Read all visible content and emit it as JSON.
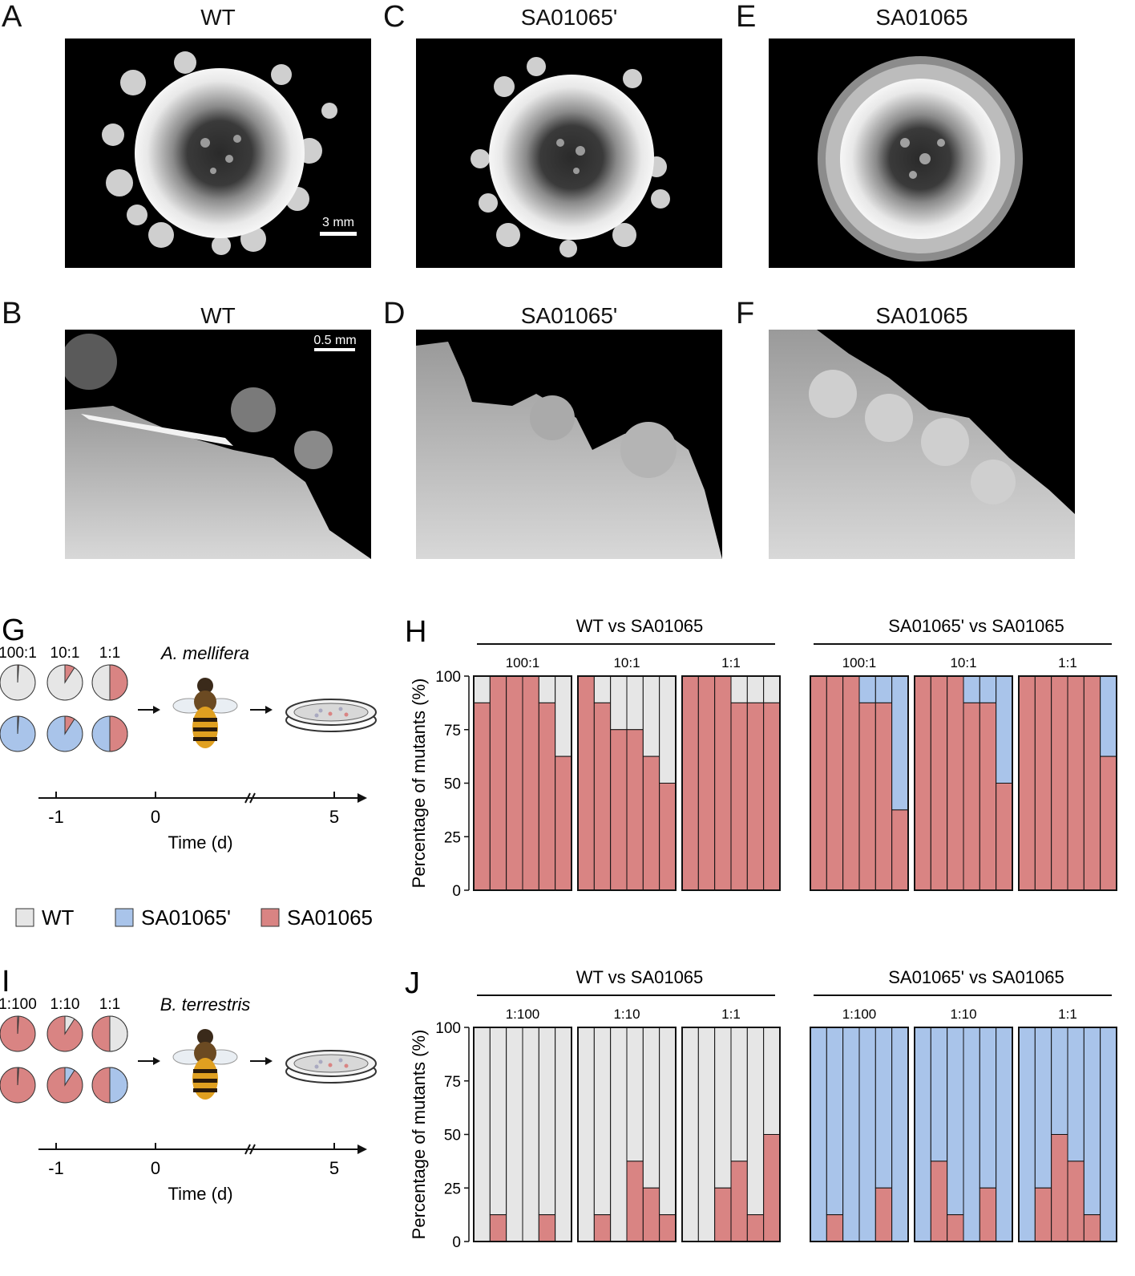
{
  "panels": {
    "A": {
      "letter": "A",
      "title": "WT",
      "scale_bar": "3 mm"
    },
    "B": {
      "letter": "B",
      "title": "WT",
      "scale_bar": "0.5 mm"
    },
    "C": {
      "letter": "C",
      "title": "SA01065'"
    },
    "D": {
      "letter": "D",
      "title": "SA01065'"
    },
    "E": {
      "letter": "E",
      "title": "SA01065"
    },
    "F": {
      "letter": "F",
      "title": "SA01065"
    }
  },
  "schematics": {
    "G": {
      "letter": "G",
      "ratios": [
        "100:1",
        "10:1",
        "1:1"
      ],
      "species": "A. mellifera",
      "ticks": [
        "-1",
        "0",
        "5"
      ],
      "time_label": "Time (d)",
      "pies_top": [
        0.01,
        0.0909,
        0.5
      ],
      "pies_bottom": [
        0.01,
        0.0909,
        0.5
      ]
    },
    "I": {
      "letter": "I",
      "ratios": [
        "1:100",
        "1:10",
        "1:1"
      ],
      "species": "B. terrestris",
      "ticks": [
        "-1",
        "0",
        "5"
      ],
      "time_label": "Time (d)",
      "pies_top": [
        0.01,
        0.0909,
        0.5
      ],
      "pies_bottom": [
        0.01,
        0.0909,
        0.5
      ]
    }
  },
  "legend": [
    {
      "label": "WT",
      "color": "#e6e6e6"
    },
    {
      "label": "SA01065'",
      "color": "#a9c4ea"
    },
    {
      "label": "SA01065",
      "color": "#d98483"
    }
  ],
  "colors": {
    "WT": "#e6e6e6",
    "SA01065p": "#a9c4ea",
    "SA01065": "#d98483"
  },
  "chart_data": [
    {
      "type": "bar",
      "panel": "H",
      "ylabel": "Percentage of mutants (%)",
      "ylim": [
        0,
        100
      ],
      "yticks": [
        0,
        25,
        50,
        75,
        100
      ],
      "groups": [
        {
          "title": "WT vs SA01065",
          "other": "WT",
          "subgroups": [
            {
              "label": "100:1",
              "values": [
                87.5,
                100,
                100,
                100,
                87.5,
                62.5
              ]
            },
            {
              "label": "10:1",
              "values": [
                100,
                87.5,
                75,
                75,
                62.5,
                50
              ]
            },
            {
              "label": "1:1",
              "values": [
                100,
                100,
                100,
                87.5,
                87.5,
                87.5
              ]
            }
          ]
        },
        {
          "title": "SA01065' vs SA01065",
          "other": "SA01065'",
          "subgroups": [
            {
              "label": "100:1",
              "values": [
                100,
                100,
                100,
                87.5,
                87.5,
                37.5
              ]
            },
            {
              "label": "10:1",
              "values": [
                100,
                100,
                100,
                87.5,
                87.5,
                50
              ]
            },
            {
              "label": "1:1",
              "values": [
                100,
                100,
                100,
                100,
                100,
                62.5
              ]
            }
          ]
        }
      ]
    },
    {
      "type": "bar",
      "panel": "J",
      "ylabel": "Percentage of mutants (%)",
      "ylim": [
        0,
        100
      ],
      "yticks": [
        0,
        25,
        50,
        75,
        100
      ],
      "groups": [
        {
          "title": "WT vs SA01065",
          "other": "WT",
          "subgroups": [
            {
              "label": "1:100",
              "values": [
                0,
                12.5,
                0,
                0,
                12.5,
                0
              ]
            },
            {
              "label": "1:10",
              "values": [
                0,
                12.5,
                0,
                37.5,
                25,
                12.5
              ]
            },
            {
              "label": "1:1",
              "values": [
                0,
                0,
                25,
                37.5,
                12.5,
                50
              ]
            }
          ]
        },
        {
          "title": "SA01065' vs SA01065",
          "other": "SA01065'",
          "subgroups": [
            {
              "label": "1:100",
              "values": [
                0,
                12.5,
                0,
                0,
                25,
                0
              ]
            },
            {
              "label": "1:10",
              "values": [
                0,
                37.5,
                12.5,
                0,
                25,
                0
              ]
            },
            {
              "label": "1:1",
              "values": [
                0,
                25,
                50,
                37.5,
                12.5,
                0
              ]
            }
          ]
        }
      ]
    }
  ]
}
